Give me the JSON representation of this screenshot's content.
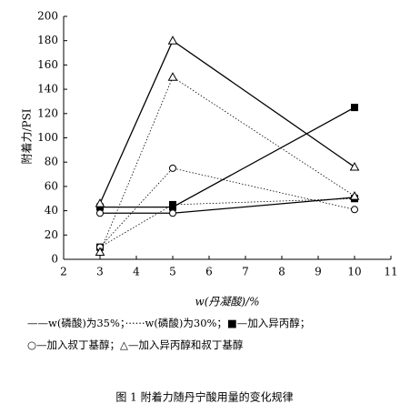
{
  "chart_data": {
    "type": "line",
    "y_label": "附着力/PSI",
    "x_label": "w(丹凝酸)/%",
    "x": [
      3,
      5,
      10
    ],
    "series": [
      {
        "marker": "square",
        "style": "solid",
        "color": "#000000",
        "values": [
          43,
          43,
          125
        ]
      },
      {
        "marker": "circle",
        "style": "solid",
        "color": "#000000",
        "values": [
          38,
          38,
          51
        ]
      },
      {
        "marker": "triangle",
        "style": "solid",
        "color": "#000000",
        "values": [
          46,
          180,
          76
        ]
      },
      {
        "marker": "square",
        "style": "dotted",
        "color": "#000000",
        "values": [
          10,
          45,
          50
        ]
      },
      {
        "marker": "circle",
        "style": "dotted",
        "color": "#000000",
        "values": [
          10,
          75,
          41
        ]
      },
      {
        "marker": "triangle",
        "style": "dotted",
        "color": "#000000",
        "values": [
          6,
          150,
          52
        ]
      }
    ],
    "xlim": [
      2,
      11
    ],
    "xticks": [
      2,
      3,
      4,
      5,
      6,
      7,
      8,
      9,
      10,
      11
    ],
    "ylim": [
      0,
      200
    ],
    "yticks": [
      0,
      20,
      40,
      60,
      80,
      100,
      120,
      140,
      160,
      180,
      200
    ],
    "legend": [
      "——w(磷酸)为35%；······w(磷酸)为30%；■—加入异丙醇；",
      "○—加入叔丁基醇；△—加入异丙醇和叔丁基醇"
    ],
    "caption": "图 1 附着力随丹宁酸用量的变化规律"
  }
}
